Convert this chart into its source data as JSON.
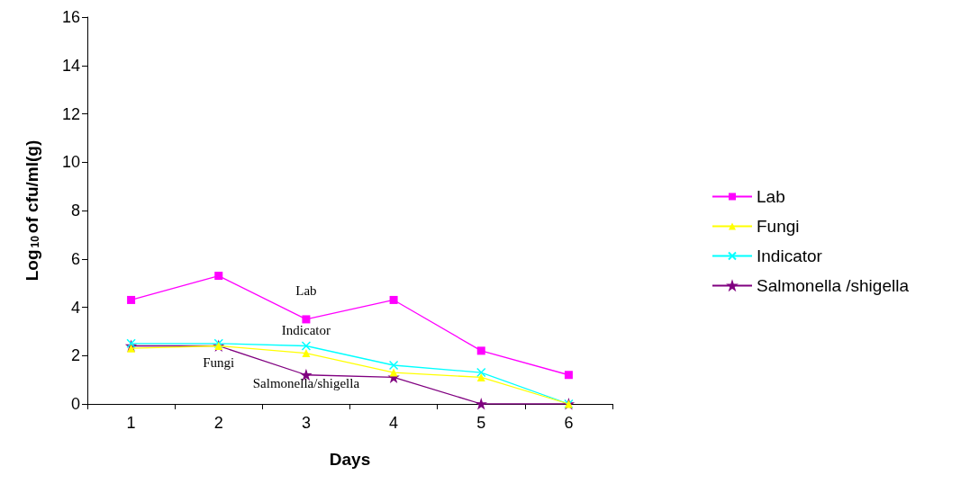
{
  "chart_data": {
    "type": "line",
    "xlabel": "Days",
    "ylabel": "Log$_{10}$of cfu/ml(g)",
    "categories": [
      "1",
      "2",
      "3",
      "4",
      "5",
      "6"
    ],
    "ylim": [
      0,
      16
    ],
    "yticks": [
      0,
      2,
      4,
      6,
      8,
      10,
      12,
      14,
      16
    ],
    "grid": false,
    "legend": "right",
    "series": [
      {
        "name": "Lab",
        "color": "#ff00ff",
        "marker": "square",
        "values": [
          4.3,
          5.3,
          3.5,
          4.3,
          2.2,
          1.2
        ]
      },
      {
        "name": "Fungi",
        "color": "#ffff00",
        "marker": "triangle",
        "values": [
          2.3,
          2.4,
          2.1,
          1.3,
          1.1,
          0
        ]
      },
      {
        "name": "Indicator",
        "color": "#00ffff",
        "marker": "cross",
        "values": [
          2.5,
          2.5,
          2.4,
          1.6,
          1.3,
          0
        ]
      },
      {
        "name": "Salmonella /shigella",
        "color": "#800080",
        "marker": "star",
        "values": [
          2.4,
          2.4,
          1.2,
          1.1,
          0,
          0
        ]
      }
    ],
    "annotations": [
      "Lab",
      "Indicator",
      "Fungi",
      "Salmonella/shigella"
    ]
  }
}
